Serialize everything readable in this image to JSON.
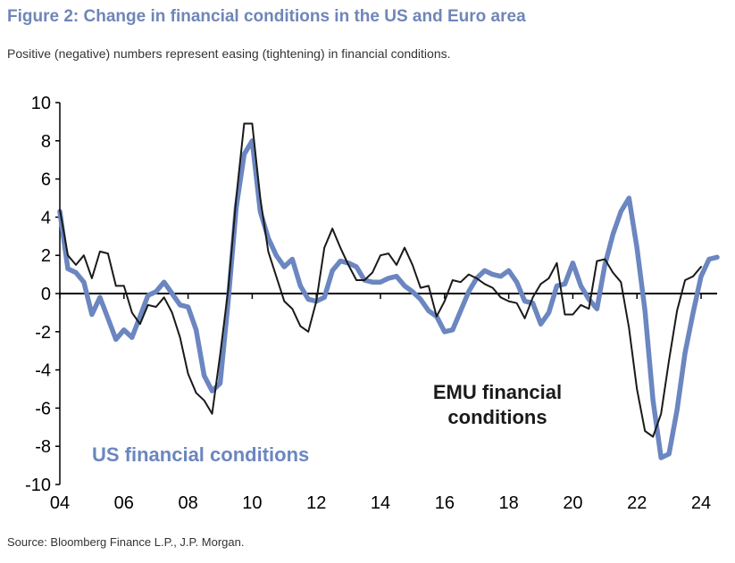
{
  "header": {
    "title": "Figure 2: Change in financial conditions in the US and Euro area",
    "subtitle": "Positive (negative) numbers represent easing (tightening) in financial conditions."
  },
  "footer": {
    "source": "Source: Bloomberg Finance L.P., J.P. Morgan."
  },
  "colors": {
    "title": "#6f86b8",
    "us_line": "#6b86c0",
    "emu_line": "#1a1a1a"
  },
  "chart_data": {
    "type": "line",
    "title": "Figure 2: Change in financial conditions in the US and Euro area",
    "subtitle": "Positive (negative) numbers represent easing (tightening) in financial conditions.",
    "xlabel": "",
    "ylabel": "",
    "xlim": [
      2004,
      2024.5
    ],
    "ylim": [
      -10,
      10
    ],
    "yticks": [
      10,
      8,
      6,
      4,
      2,
      0,
      -2,
      -4,
      -6,
      -8,
      -10
    ],
    "xticks": [
      {
        "value": 2004,
        "label": "04"
      },
      {
        "value": 2006,
        "label": "06"
      },
      {
        "value": 2008,
        "label": "08"
      },
      {
        "value": 2010,
        "label": "10"
      },
      {
        "value": 2012,
        "label": "12"
      },
      {
        "value": 2014,
        "label": "14"
      },
      {
        "value": 2016,
        "label": "16"
      },
      {
        "value": 2018,
        "label": "18"
      },
      {
        "value": 2020,
        "label": "20"
      },
      {
        "value": 2022,
        "label": "22"
      },
      {
        "value": 2024,
        "label": "24"
      }
    ],
    "grid": false,
    "legend": "none",
    "series": [
      {
        "name": "US financial conditions",
        "label": "US financial conditions",
        "color": "#6b86c0",
        "points": [
          [
            2004.0,
            4.3
          ],
          [
            2004.25,
            1.3
          ],
          [
            2004.5,
            1.1
          ],
          [
            2004.75,
            0.6
          ],
          [
            2005.0,
            -1.1
          ],
          [
            2005.25,
            -0.2
          ],
          [
            2005.5,
            -1.3
          ],
          [
            2005.75,
            -2.4
          ],
          [
            2006.0,
            -1.9
          ],
          [
            2006.25,
            -2.3
          ],
          [
            2006.5,
            -1.2
          ],
          [
            2006.75,
            -0.1
          ],
          [
            2007.0,
            0.1
          ],
          [
            2007.25,
            0.6
          ],
          [
            2007.5,
            0.0
          ],
          [
            2007.75,
            -0.6
          ],
          [
            2008.0,
            -0.7
          ],
          [
            2008.25,
            -1.9
          ],
          [
            2008.5,
            -4.3
          ],
          [
            2008.75,
            -5.1
          ],
          [
            2009.0,
            -4.7
          ],
          [
            2009.25,
            -0.4
          ],
          [
            2009.5,
            4.5
          ],
          [
            2009.75,
            7.3
          ],
          [
            2010.0,
            8.0
          ],
          [
            2010.25,
            4.3
          ],
          [
            2010.5,
            2.9
          ],
          [
            2010.75,
            2.0
          ],
          [
            2011.0,
            1.4
          ],
          [
            2011.25,
            1.8
          ],
          [
            2011.5,
            0.4
          ],
          [
            2011.75,
            -0.3
          ],
          [
            2012.0,
            -0.4
          ],
          [
            2012.25,
            -0.2
          ],
          [
            2012.5,
            1.2
          ],
          [
            2012.75,
            1.7
          ],
          [
            2013.0,
            1.6
          ],
          [
            2013.25,
            1.4
          ],
          [
            2013.5,
            0.7
          ],
          [
            2013.75,
            0.6
          ],
          [
            2014.0,
            0.6
          ],
          [
            2014.25,
            0.8
          ],
          [
            2014.5,
            0.9
          ],
          [
            2014.75,
            0.4
          ],
          [
            2015.0,
            0.1
          ],
          [
            2015.25,
            -0.3
          ],
          [
            2015.5,
            -0.9
          ],
          [
            2015.75,
            -1.2
          ],
          [
            2016.0,
            -2.0
          ],
          [
            2016.25,
            -1.9
          ],
          [
            2016.5,
            -0.9
          ],
          [
            2016.75,
            0.1
          ],
          [
            2017.0,
            0.8
          ],
          [
            2017.25,
            1.2
          ],
          [
            2017.5,
            1.0
          ],
          [
            2017.75,
            0.9
          ],
          [
            2018.0,
            1.2
          ],
          [
            2018.25,
            0.6
          ],
          [
            2018.5,
            -0.4
          ],
          [
            2018.75,
            -0.5
          ],
          [
            2019.0,
            -1.6
          ],
          [
            2019.25,
            -1.0
          ],
          [
            2019.5,
            0.4
          ],
          [
            2019.75,
            0.5
          ],
          [
            2020.0,
            1.6
          ],
          [
            2020.25,
            0.4
          ],
          [
            2020.5,
            -0.3
          ],
          [
            2020.75,
            -0.8
          ],
          [
            2021.0,
            1.5
          ],
          [
            2021.25,
            3.1
          ],
          [
            2021.5,
            4.3
          ],
          [
            2021.75,
            5.0
          ],
          [
            2022.0,
            2.4
          ],
          [
            2022.25,
            -0.9
          ],
          [
            2022.5,
            -5.6
          ],
          [
            2022.75,
            -8.6
          ],
          [
            2023.0,
            -8.4
          ],
          [
            2023.25,
            -6.1
          ],
          [
            2023.5,
            -3.1
          ],
          [
            2023.75,
            -1.0
          ],
          [
            2024.0,
            0.9
          ],
          [
            2024.25,
            1.8
          ],
          [
            2024.5,
            1.9
          ]
        ]
      },
      {
        "name": "EMU financial conditions",
        "label": "EMU financial\nconditions",
        "color": "#1a1a1a",
        "points": [
          [
            2004.0,
            4.4
          ],
          [
            2004.25,
            2.0
          ],
          [
            2004.5,
            1.5
          ],
          [
            2004.75,
            2.0
          ],
          [
            2005.0,
            0.8
          ],
          [
            2005.25,
            2.2
          ],
          [
            2005.5,
            2.1
          ],
          [
            2005.75,
            0.4
          ],
          [
            2006.0,
            0.4
          ],
          [
            2006.25,
            -1.0
          ],
          [
            2006.5,
            -1.6
          ],
          [
            2006.75,
            -0.6
          ],
          [
            2007.0,
            -0.7
          ],
          [
            2007.25,
            -0.2
          ],
          [
            2007.5,
            -1.0
          ],
          [
            2007.75,
            -2.3
          ],
          [
            2008.0,
            -4.2
          ],
          [
            2008.25,
            -5.2
          ],
          [
            2008.5,
            -5.6
          ],
          [
            2008.75,
            -6.3
          ],
          [
            2009.0,
            -3.2
          ],
          [
            2009.25,
            0.2
          ],
          [
            2009.5,
            5.0
          ],
          [
            2009.75,
            8.9
          ],
          [
            2010.0,
            8.9
          ],
          [
            2010.25,
            5.0
          ],
          [
            2010.5,
            2.2
          ],
          [
            2010.75,
            0.9
          ],
          [
            2011.0,
            -0.4
          ],
          [
            2011.25,
            -0.8
          ],
          [
            2011.5,
            -1.7
          ],
          [
            2011.75,
            -2.0
          ],
          [
            2012.0,
            -0.4
          ],
          [
            2012.25,
            2.4
          ],
          [
            2012.5,
            3.4
          ],
          [
            2012.75,
            2.4
          ],
          [
            2013.0,
            1.5
          ],
          [
            2013.25,
            0.7
          ],
          [
            2013.5,
            0.7
          ],
          [
            2013.75,
            1.1
          ],
          [
            2014.0,
            2.0
          ],
          [
            2014.25,
            2.1
          ],
          [
            2014.5,
            1.5
          ],
          [
            2014.75,
            2.4
          ],
          [
            2015.0,
            1.5
          ],
          [
            2015.25,
            0.3
          ],
          [
            2015.5,
            0.4
          ],
          [
            2015.75,
            -1.2
          ],
          [
            2016.0,
            -0.4
          ],
          [
            2016.25,
            0.7
          ],
          [
            2016.5,
            0.6
          ],
          [
            2016.75,
            1.0
          ],
          [
            2017.0,
            0.8
          ],
          [
            2017.25,
            0.5
          ],
          [
            2017.5,
            0.3
          ],
          [
            2017.75,
            -0.2
          ],
          [
            2018.0,
            -0.4
          ],
          [
            2018.25,
            -0.5
          ],
          [
            2018.5,
            -1.3
          ],
          [
            2018.75,
            -0.2
          ],
          [
            2019.0,
            0.5
          ],
          [
            2019.25,
            0.8
          ],
          [
            2019.5,
            1.6
          ],
          [
            2019.75,
            -1.1
          ],
          [
            2020.0,
            -1.1
          ],
          [
            2020.25,
            -0.6
          ],
          [
            2020.5,
            -0.8
          ],
          [
            2020.75,
            1.7
          ],
          [
            2021.0,
            1.8
          ],
          [
            2021.25,
            1.1
          ],
          [
            2021.5,
            0.6
          ],
          [
            2021.75,
            -1.8
          ],
          [
            2022.0,
            -5.0
          ],
          [
            2022.25,
            -7.2
          ],
          [
            2022.5,
            -7.5
          ],
          [
            2022.75,
            -6.3
          ],
          [
            2023.0,
            -3.5
          ],
          [
            2023.25,
            -0.9
          ],
          [
            2023.5,
            0.7
          ],
          [
            2023.75,
            0.9
          ],
          [
            2024.0,
            1.4
          ]
        ]
      }
    ]
  }
}
